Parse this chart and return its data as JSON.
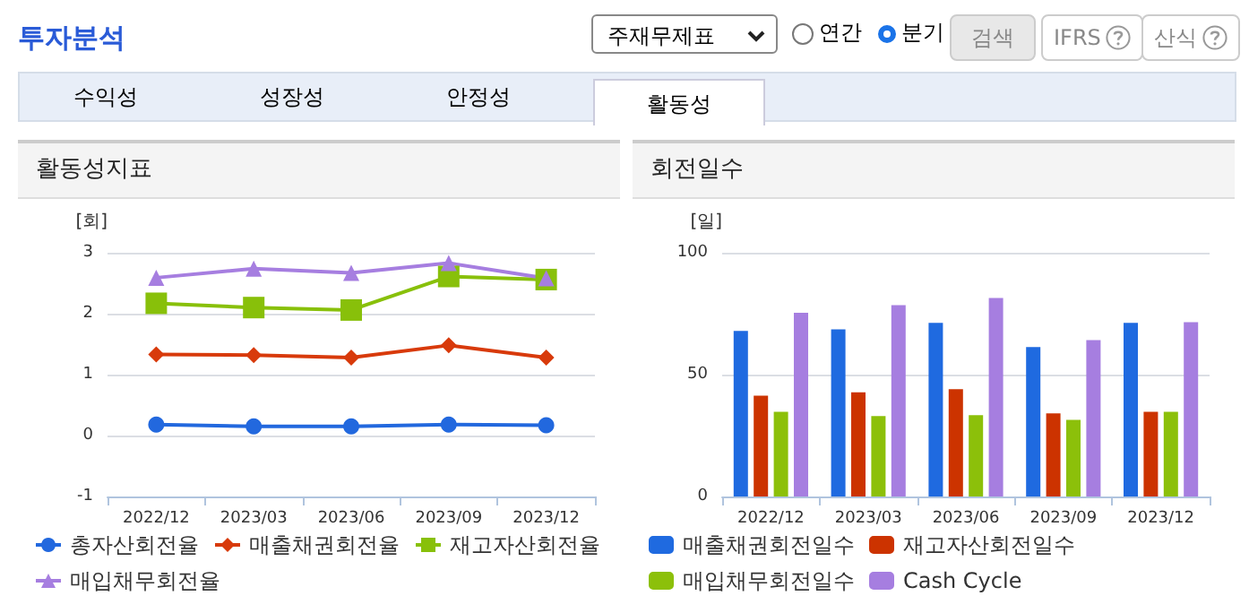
{
  "chart_data": [
    {
      "type": "other",
      "title": "투자분석",
      "annotations": [
        "주재무제표",
        "연간",
        "분기",
        "검색",
        "IFRS",
        "산식",
        "수익성",
        "성장성",
        "안정성",
        "활동성"
      ]
    },
    {
      "type": "line",
      "title": "활동성지표",
      "ylabel": "[회]",
      "categories": [
        "2022/12",
        "2023/03",
        "2023/06",
        "2023/09",
        "2023/12"
      ],
      "ylim": [
        -1,
        3
      ],
      "yticks": [
        -1,
        0,
        1,
        2,
        3
      ],
      "grid": "y",
      "legend": "bottom",
      "series": [
        {
          "name": "총자산회전율",
          "color": "#2268de",
          "marker": "circle",
          "values": [
            0.18,
            0.15,
            0.15,
            0.18,
            0.17
          ]
        },
        {
          "name": "매출채권회전율",
          "color": "#d83a0b",
          "marker": "diamond",
          "values": [
            1.33,
            1.32,
            1.28,
            1.48,
            1.28
          ]
        },
        {
          "name": "재고자산회전율",
          "color": "#88c00a",
          "marker": "square",
          "values": [
            2.17,
            2.1,
            2.06,
            2.61,
            2.56
          ]
        },
        {
          "name": "매입채무회전율",
          "color": "#a67ee0",
          "marker": "triangle",
          "values": [
            2.59,
            2.74,
            2.67,
            2.83,
            2.58
          ]
        }
      ]
    },
    {
      "type": "bar",
      "title": "회전일수",
      "ylabel": "[일]",
      "categories": [
        "2022/12",
        "2023/03",
        "2023/06",
        "2023/09",
        "2023/12"
      ],
      "ylim": [
        0,
        100
      ],
      "yticks": [
        0,
        50,
        100
      ],
      "grid": "y",
      "legend": "bottom",
      "series": [
        {
          "name": "매출채권회전일수",
          "color": "#1f6ae0",
          "values": [
            67.9,
            68.6,
            71.2,
            61.3,
            71.2
          ]
        },
        {
          "name": "재고자산회전일수",
          "color": "#cc3300",
          "values": [
            41.4,
            42.7,
            44.0,
            34.1,
            34.7
          ]
        },
        {
          "name": "매입채무회전일수",
          "color": "#8cc00a",
          "values": [
            34.7,
            33.0,
            33.4,
            31.4,
            34.7
          ]
        },
        {
          "name": "Cash Cycle",
          "color": "#a67ee0",
          "values": [
            75.4,
            78.5,
            81.4,
            64.2,
            71.5
          ]
        }
      ]
    }
  ]
}
